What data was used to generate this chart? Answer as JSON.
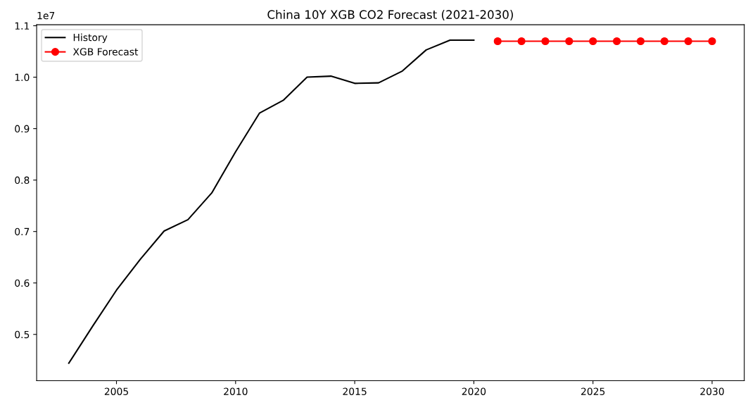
{
  "chart_data": {
    "type": "line",
    "title": "China 10Y XGB CO2 Forecast (2021-2030)",
    "series": [
      {
        "name": "History",
        "color": "#000000",
        "marker": "none",
        "x": [
          2003,
          2004,
          2005,
          2006,
          2007,
          2008,
          2009,
          2010,
          2011,
          2012,
          2013,
          2014,
          2015,
          2016,
          2017,
          2018,
          2019,
          2020
        ],
        "values": [
          0.444,
          0.516,
          0.586,
          0.646,
          0.701,
          0.723,
          0.775,
          0.855,
          0.93,
          0.955,
          1.0,
          1.002,
          0.988,
          0.989,
          1.012,
          1.053,
          1.072,
          1.072
        ]
      },
      {
        "name": "XGB Forecast",
        "color": "#ff0000",
        "marker": "circle",
        "x": [
          2021,
          2022,
          2023,
          2024,
          2025,
          2026,
          2027,
          2028,
          2029,
          2030
        ],
        "values": [
          1.07,
          1.07,
          1.07,
          1.07,
          1.07,
          1.07,
          1.07,
          1.07,
          1.07,
          1.07
        ]
      }
    ],
    "xlim": [
      2001.65,
      2031.35
    ],
    "xticks": [
      2005,
      2010,
      2015,
      2020,
      2025,
      2030
    ],
    "ylim": [
      0.41,
      1.102
    ],
    "yticks": [
      0.5,
      0.6,
      0.7,
      0.8,
      0.9,
      {
        "value": 1.0,
        "label": "1.0"
      },
      1.1
    ],
    "annotations": [
      "1e7"
    ],
    "legend": "top left",
    "grid": false,
    "line_style": "solid"
  }
}
